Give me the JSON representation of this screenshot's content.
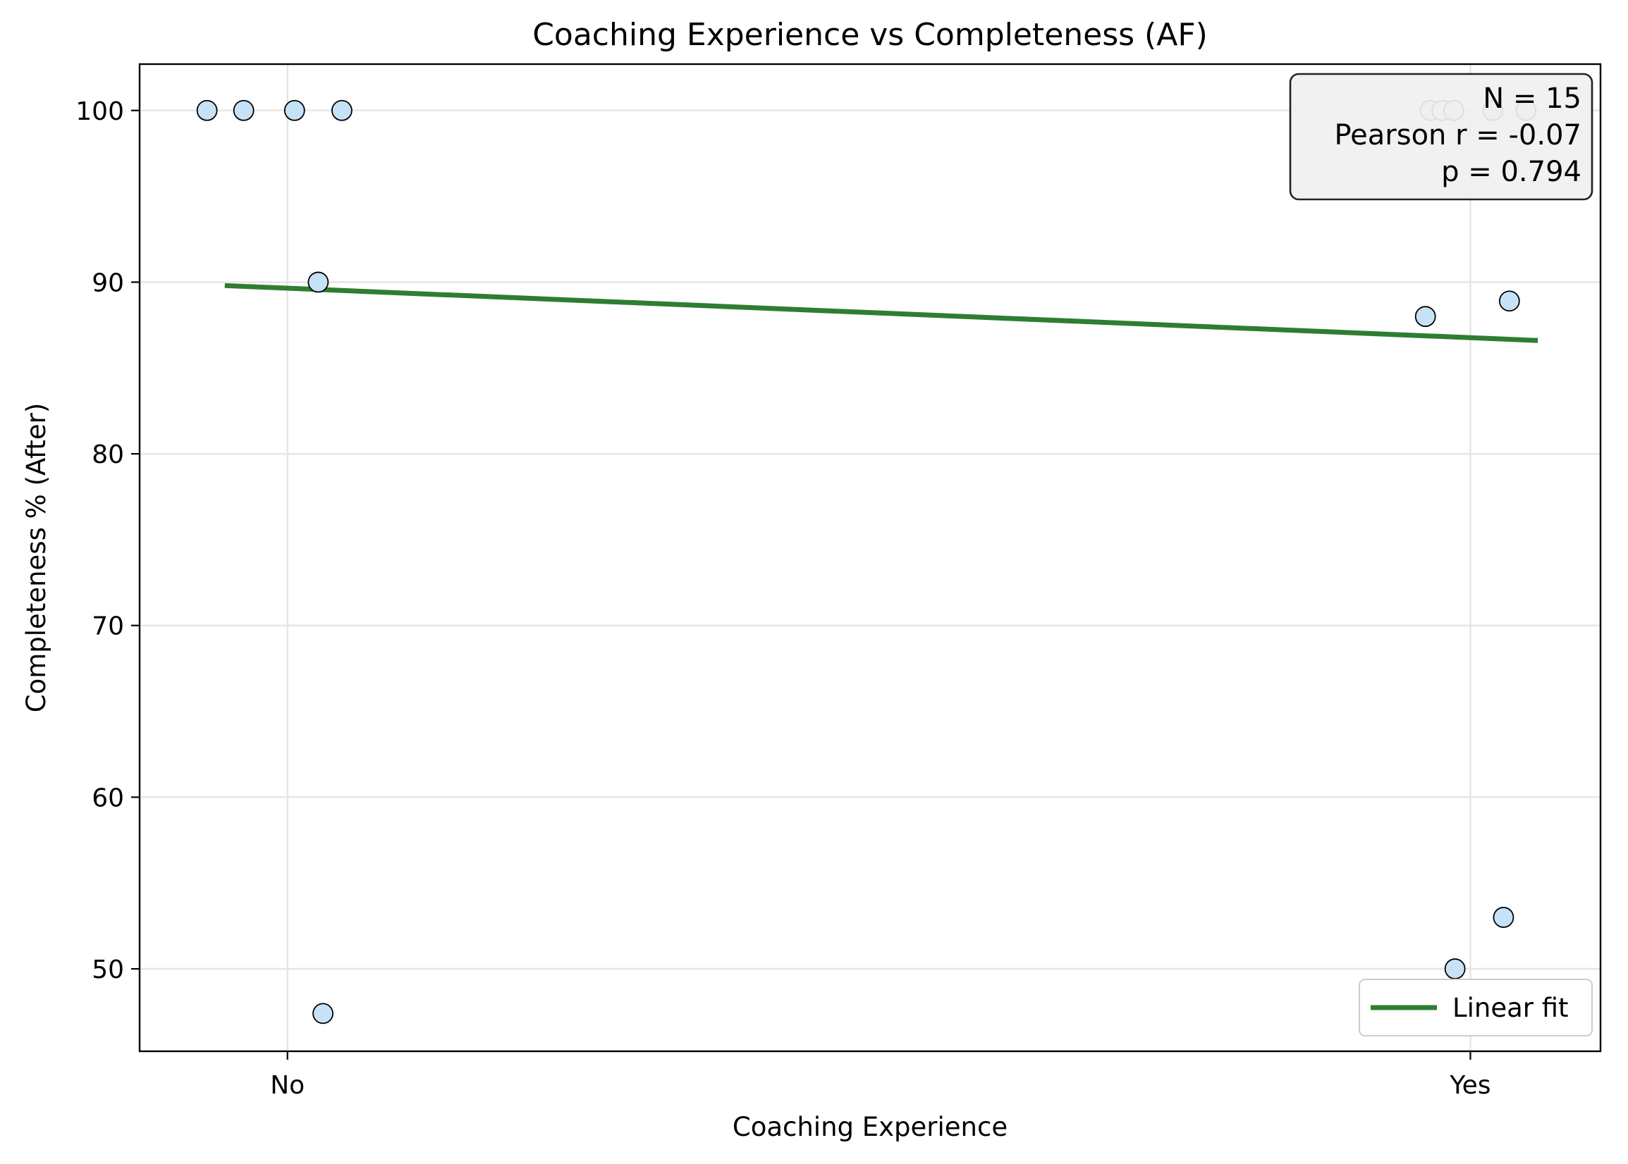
{
  "chart_data": {
    "type": "scatter",
    "title": "Coaching Experience vs Completeness (AF)",
    "xlabel": "Coaching Experience",
    "ylabel": "Completeness % (After)",
    "categories": [
      "No",
      "Yes"
    ],
    "x_ticks": [
      {
        "x": 0,
        "label": "No"
      },
      {
        "x": 1,
        "label": "Yes"
      }
    ],
    "y_ticks": [
      50,
      60,
      70,
      80,
      90,
      100
    ],
    "xlim": [
      -0.125,
      1.11
    ],
    "ylim": [
      45.2,
      102.7
    ],
    "grid": true,
    "series": [
      {
        "points": [
          {
            "x": -0.068,
            "y": 100
          },
          {
            "x": -0.037,
            "y": 100
          },
          {
            "x": 0.006,
            "y": 100
          },
          {
            "x": 0.046,
            "y": 100
          },
          {
            "x": 0.026,
            "y": 90
          },
          {
            "x": 0.03,
            "y": 47.4
          },
          {
            "x": 0.966,
            "y": 100
          },
          {
            "x": 0.976,
            "y": 100
          },
          {
            "x": 0.986,
            "y": 100
          },
          {
            "x": 1.019,
            "y": 100
          },
          {
            "x": 1.047,
            "y": 100
          },
          {
            "x": 0.962,
            "y": 88
          },
          {
            "x": 1.033,
            "y": 88.9
          },
          {
            "x": 0.987,
            "y": 50
          },
          {
            "x": 1.028,
            "y": 53
          }
        ],
        "fill": "#c6e2f7",
        "edge": "#000000"
      }
    ],
    "fit_line": {
      "name": "Linear fit",
      "color": "#2e7d32",
      "x": [
        -0.053,
        1.057
      ],
      "y": [
        89.8,
        86.6
      ]
    },
    "legend": {
      "placement": "lower-right",
      "entries": [
        "Linear fit"
      ]
    },
    "stats_box": {
      "placement": "upper-right",
      "lines": [
        "N = 15",
        "Pearson r = -0.07",
        "p = 0.794"
      ]
    }
  }
}
